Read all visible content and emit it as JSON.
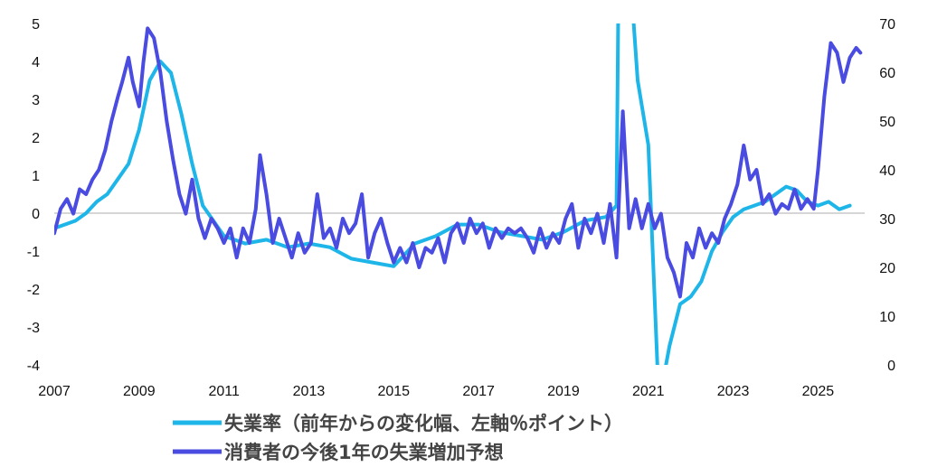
{
  "chart_data": {
    "type": "line",
    "x_ticks": [
      "2007",
      "2009",
      "2011",
      "2013",
      "2015",
      "2017",
      "2019",
      "2021",
      "2023",
      "2025"
    ],
    "y_left_ticks": [
      "5",
      "4",
      "3",
      "2",
      "1",
      "0",
      "-1",
      "-2",
      "-3",
      "-4"
    ],
    "y_right_ticks": [
      "70",
      "60",
      "50",
      "40",
      "30",
      "20",
      "10",
      "0"
    ],
    "ylim_left": [
      -4,
      5
    ],
    "ylim_right": [
      0,
      70
    ],
    "series": [
      {
        "name": "失業率（前年からの変化幅、左軸％ポイント）",
        "axis": "left",
        "color": "#1eb6e8",
        "points": [
          [
            2007.0,
            -0.4
          ],
          [
            2007.25,
            -0.3
          ],
          [
            2007.5,
            -0.2
          ],
          [
            2007.75,
            0.0
          ],
          [
            2008.0,
            0.3
          ],
          [
            2008.25,
            0.5
          ],
          [
            2008.5,
            0.9
          ],
          [
            2008.75,
            1.3
          ],
          [
            2009.0,
            2.2
          ],
          [
            2009.25,
            3.5
          ],
          [
            2009.5,
            4.0
          ],
          [
            2009.75,
            3.7
          ],
          [
            2010.0,
            2.6
          ],
          [
            2010.25,
            1.3
          ],
          [
            2010.5,
            0.2
          ],
          [
            2010.75,
            -0.2
          ],
          [
            2011.0,
            -0.6
          ],
          [
            2011.5,
            -0.8
          ],
          [
            2012.0,
            -0.7
          ],
          [
            2012.5,
            -0.9
          ],
          [
            2013.0,
            -0.8
          ],
          [
            2013.5,
            -0.9
          ],
          [
            2014.0,
            -1.2
          ],
          [
            2014.5,
            -1.3
          ],
          [
            2015.0,
            -1.4
          ],
          [
            2015.5,
            -0.8
          ],
          [
            2016.0,
            -0.6
          ],
          [
            2016.5,
            -0.3
          ],
          [
            2017.0,
            -0.3
          ],
          [
            2017.5,
            -0.5
          ],
          [
            2018.0,
            -0.6
          ],
          [
            2018.5,
            -0.7
          ],
          [
            2019.0,
            -0.5
          ],
          [
            2019.5,
            -0.2
          ],
          [
            2020.0,
            -0.1
          ],
          [
            2020.25,
            0.2
          ],
          [
            2020.33,
            10.0
          ],
          [
            2020.5,
            7.5
          ],
          [
            2020.75,
            3.5
          ],
          [
            2021.0,
            1.8
          ],
          [
            2021.25,
            -5.0
          ],
          [
            2021.5,
            -3.5
          ],
          [
            2021.75,
            -2.4
          ],
          [
            2022.0,
            -2.2
          ],
          [
            2022.25,
            -1.8
          ],
          [
            2022.5,
            -1.0
          ],
          [
            2022.75,
            -0.5
          ],
          [
            2023.0,
            -0.1
          ],
          [
            2023.25,
            0.1
          ],
          [
            2023.5,
            0.2
          ],
          [
            2023.75,
            0.3
          ],
          [
            2024.0,
            0.5
          ],
          [
            2024.25,
            0.7
          ],
          [
            2024.5,
            0.6
          ],
          [
            2024.75,
            0.3
          ],
          [
            2025.0,
            0.2
          ],
          [
            2025.25,
            0.3
          ],
          [
            2025.5,
            0.1
          ],
          [
            2025.75,
            0.2
          ]
        ]
      },
      {
        "name": "消費者の今後1年の失業増加予想",
        "axis": "right",
        "color": "#4a4be0",
        "points": [
          [
            2007.0,
            27
          ],
          [
            2007.15,
            32
          ],
          [
            2007.3,
            34
          ],
          [
            2007.45,
            31
          ],
          [
            2007.6,
            36
          ],
          [
            2007.75,
            35
          ],
          [
            2007.9,
            38
          ],
          [
            2008.05,
            40
          ],
          [
            2008.2,
            44
          ],
          [
            2008.35,
            50
          ],
          [
            2008.5,
            55
          ],
          [
            2008.6,
            58
          ],
          [
            2008.75,
            63
          ],
          [
            2008.85,
            58
          ],
          [
            2009.0,
            53
          ],
          [
            2009.1,
            62
          ],
          [
            2009.2,
            69
          ],
          [
            2009.35,
            67
          ],
          [
            2009.5,
            60
          ],
          [
            2009.65,
            50
          ],
          [
            2009.8,
            42
          ],
          [
            2009.95,
            35
          ],
          [
            2010.1,
            31
          ],
          [
            2010.25,
            38
          ],
          [
            2010.4,
            30
          ],
          [
            2010.55,
            26
          ],
          [
            2010.7,
            30
          ],
          [
            2010.85,
            28
          ],
          [
            2011.0,
            25
          ],
          [
            2011.15,
            28
          ],
          [
            2011.3,
            22
          ],
          [
            2011.45,
            28
          ],
          [
            2011.6,
            25
          ],
          [
            2011.75,
            32
          ],
          [
            2011.85,
            43
          ],
          [
            2012.0,
            35
          ],
          [
            2012.15,
            25
          ],
          [
            2012.3,
            30
          ],
          [
            2012.45,
            26
          ],
          [
            2012.6,
            22
          ],
          [
            2012.75,
            27
          ],
          [
            2012.9,
            23
          ],
          [
            2013.05,
            25
          ],
          [
            2013.2,
            35
          ],
          [
            2013.35,
            26
          ],
          [
            2013.5,
            28
          ],
          [
            2013.65,
            24
          ],
          [
            2013.8,
            30
          ],
          [
            2013.95,
            27
          ],
          [
            2014.1,
            29
          ],
          [
            2014.25,
            35
          ],
          [
            2014.4,
            22
          ],
          [
            2014.55,
            27
          ],
          [
            2014.7,
            30
          ],
          [
            2014.85,
            25
          ],
          [
            2015.0,
            21
          ],
          [
            2015.15,
            24
          ],
          [
            2015.3,
            21
          ],
          [
            2015.45,
            25
          ],
          [
            2015.6,
            20
          ],
          [
            2015.75,
            24
          ],
          [
            2015.9,
            23
          ],
          [
            2016.05,
            26
          ],
          [
            2016.2,
            21
          ],
          [
            2016.35,
            27
          ],
          [
            2016.5,
            29
          ],
          [
            2016.65,
            25
          ],
          [
            2016.8,
            30
          ],
          [
            2016.95,
            27
          ],
          [
            2017.1,
            29
          ],
          [
            2017.25,
            24
          ],
          [
            2017.4,
            28
          ],
          [
            2017.55,
            26
          ],
          [
            2017.7,
            28
          ],
          [
            2017.85,
            27
          ],
          [
            2018.0,
            28
          ],
          [
            2018.15,
            26
          ],
          [
            2018.3,
            23
          ],
          [
            2018.45,
            28
          ],
          [
            2018.6,
            24
          ],
          [
            2018.75,
            27
          ],
          [
            2018.9,
            25
          ],
          [
            2019.05,
            30
          ],
          [
            2019.2,
            33
          ],
          [
            2019.35,
            24
          ],
          [
            2019.5,
            30
          ],
          [
            2019.65,
            27
          ],
          [
            2019.8,
            31
          ],
          [
            2019.95,
            25
          ],
          [
            2020.1,
            33
          ],
          [
            2020.25,
            22
          ],
          [
            2020.4,
            52
          ],
          [
            2020.55,
            28
          ],
          [
            2020.7,
            34
          ],
          [
            2020.85,
            28
          ],
          [
            2021.0,
            33
          ],
          [
            2021.15,
            28
          ],
          [
            2021.3,
            31
          ],
          [
            2021.45,
            22
          ],
          [
            2021.6,
            19
          ],
          [
            2021.75,
            14
          ],
          [
            2021.9,
            25
          ],
          [
            2022.05,
            22
          ],
          [
            2022.2,
            28
          ],
          [
            2022.35,
            24
          ],
          [
            2022.5,
            27
          ],
          [
            2022.65,
            25
          ],
          [
            2022.8,
            30
          ],
          [
            2022.95,
            33
          ],
          [
            2023.1,
            37
          ],
          [
            2023.25,
            45
          ],
          [
            2023.4,
            38
          ],
          [
            2023.55,
            40
          ],
          [
            2023.7,
            33
          ],
          [
            2023.85,
            35
          ],
          [
            2024.0,
            31
          ],
          [
            2024.15,
            33
          ],
          [
            2024.3,
            32
          ],
          [
            2024.45,
            36
          ],
          [
            2024.6,
            32
          ],
          [
            2024.75,
            34
          ],
          [
            2024.9,
            32
          ],
          [
            2025.0,
            40
          ],
          [
            2025.15,
            55
          ],
          [
            2025.3,
            66
          ],
          [
            2025.45,
            64
          ],
          [
            2025.6,
            58
          ],
          [
            2025.75,
            63
          ],
          [
            2025.9,
            65
          ],
          [
            2026.0,
            64
          ]
        ]
      }
    ],
    "grid": false
  }
}
